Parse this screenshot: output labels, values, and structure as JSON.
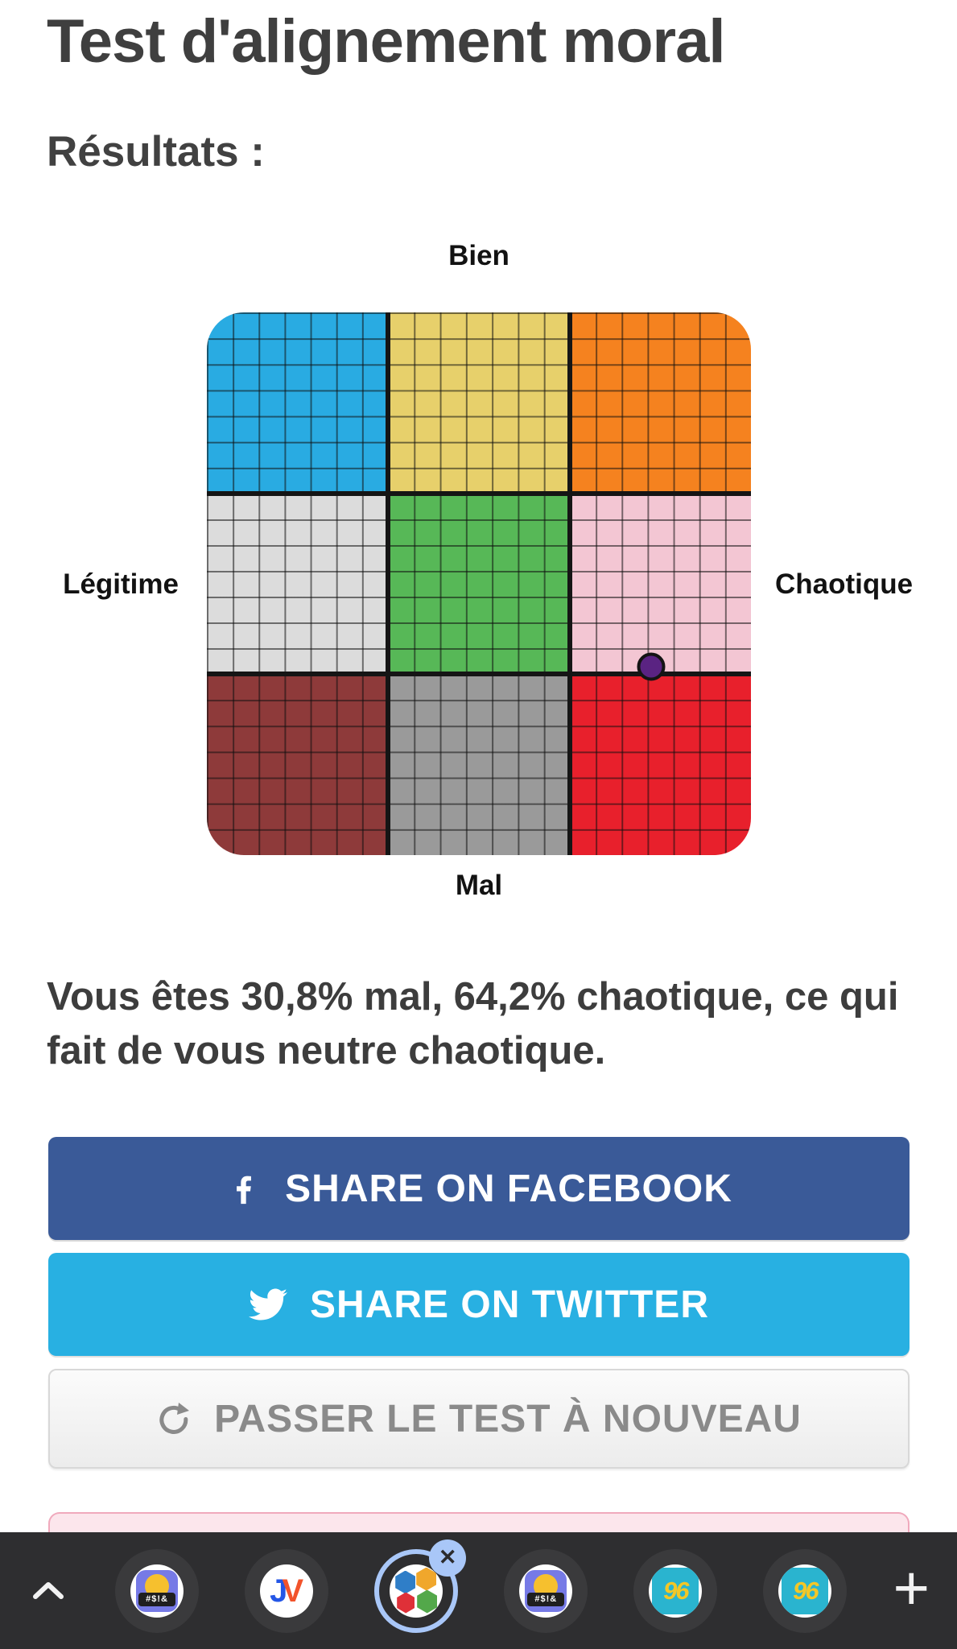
{
  "page": {
    "title": "Test d'alignement moral",
    "results_label": "Résultats :",
    "result_text": "Vous êtes 30,8% mal, 64,2% chaotique, ce qui fait de vous neutre chaotique."
  },
  "chart": {
    "labels": {
      "top": "Bien",
      "bottom": "Mal",
      "left": "Légitime",
      "right": "Chaotique"
    },
    "point": {
      "x_percent": 81.7,
      "y_percent": 65.3,
      "color": "#5a2382"
    },
    "cells": [
      {
        "name": "legitime-bien",
        "color": "#29abe2"
      },
      {
        "name": "neutre-bien",
        "color": "#e7d06b"
      },
      {
        "name": "chaotique-bien",
        "color": "#f5821f"
      },
      {
        "name": "legitime-neutre",
        "color": "#dcdcdc"
      },
      {
        "name": "neutre-neutre",
        "color": "#57b857"
      },
      {
        "name": "chaotique-neutre",
        "color": "#f3c6d3"
      },
      {
        "name": "legitime-mal",
        "color": "#8e3a3a"
      },
      {
        "name": "neutre-mal",
        "color": "#9a9a9a"
      },
      {
        "name": "chaotique-mal",
        "color": "#e8202c"
      }
    ]
  },
  "chart_data": {
    "type": "scatter",
    "title": "Alignment grid 3x3 (7x7 sub-cells per section)",
    "axes": {
      "top": "Bien",
      "bottom": "Mal",
      "left": "Légitime",
      "right": "Chaotique"
    },
    "points": [
      {
        "mal_pct": 30.8,
        "chaotique_pct": 64.2,
        "alignment": "neutre chaotique"
      }
    ]
  },
  "buttons": {
    "facebook": "SHARE ON FACEBOOK",
    "twitter": "SHARE ON TWITTER",
    "retake": "PASSER LE TEST À NOUVEAU"
  },
  "colors": {
    "facebook": "#3a5a98",
    "twitter": "#28b0e2",
    "toolbar_bg": "#2e2e30",
    "selected_tab_ring": "#a9c7f8",
    "point": "#5a2382"
  },
  "toolbar": {
    "tabs": [
      {
        "name": "grawlix-game-tab",
        "badge_text": "#$!&"
      },
      {
        "name": "jeuxvideo-tab",
        "j": "J",
        "v": "V"
      },
      {
        "name": "alignment-test-tab",
        "selected": true,
        "close_glyph": "✕"
      },
      {
        "name": "grawlix-game-tab",
        "badge_text": "#$!&"
      },
      {
        "name": "96-tab",
        "label": "96"
      },
      {
        "name": "96-tab",
        "label": "96"
      }
    ],
    "plus_glyph": "+"
  }
}
